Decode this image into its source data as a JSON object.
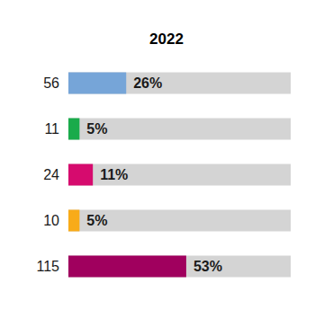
{
  "chart_data": {
    "type": "bar",
    "orientation": "horizontal",
    "title": "2022",
    "categories": [
      null,
      null,
      null,
      null,
      null
    ],
    "values": [
      26,
      5,
      11,
      5,
      53
    ],
    "value_labels": [
      "26%",
      "5%",
      "11%",
      "5%",
      "53%"
    ],
    "counts": [
      56,
      11,
      24,
      10,
      115
    ],
    "colors": [
      "#76a5d8",
      "#1aab4b",
      "#d60b6e",
      "#f8ab19",
      "#a0005e"
    ],
    "xlim": [
      0,
      100
    ],
    "data_labels": true,
    "tick_labels": false,
    "grid": false
  }
}
